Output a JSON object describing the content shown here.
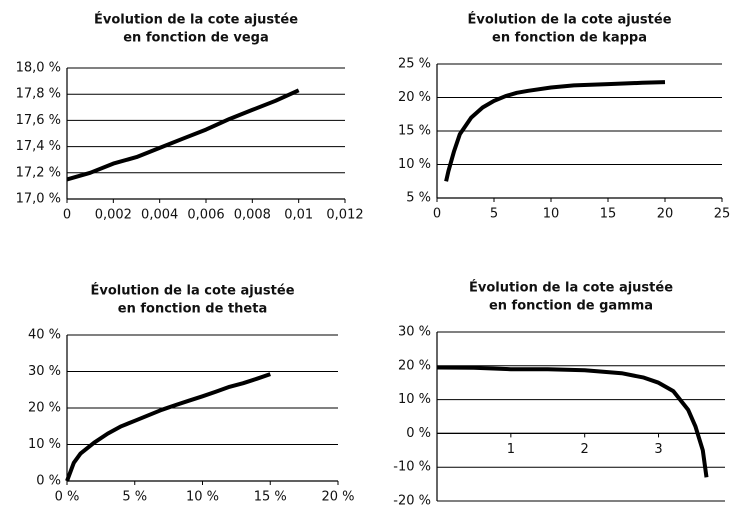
{
  "chart_data": [
    {
      "type": "line",
      "title": [
        "Évolution de la cote ajustée",
        "en fonction de vega"
      ],
      "x": [
        0,
        0.001,
        0.002,
        0.003,
        0.004,
        0.005,
        0.006,
        0.007,
        0.008,
        0.009,
        0.01
      ],
      "values": [
        17.15,
        17.2,
        17.27,
        17.32,
        17.39,
        17.46,
        17.53,
        17.61,
        17.68,
        17.75,
        17.83
      ],
      "color": "#000000",
      "grid": true,
      "xlim": [
        0,
        0.012
      ],
      "xticks": [
        0,
        {
          "value": 0.002,
          "label": "0,002"
        },
        {
          "value": 0.004,
          "label": "0,004"
        },
        {
          "value": 0.006,
          "label": "0,006"
        },
        {
          "value": 0.008,
          "label": "0,008"
        },
        {
          "value": 0.01,
          "label": "0,01"
        },
        {
          "value": 0.012,
          "label": "0,012"
        }
      ],
      "ylim": [
        17.0,
        18.0
      ],
      "yticks": [
        {
          "value": 17.0,
          "label": "17,0 %"
        },
        {
          "value": 17.2,
          "label": "17,2 %"
        },
        {
          "value": 17.4,
          "label": "17,4 %"
        },
        {
          "value": 17.6,
          "label": "17,6 %"
        },
        {
          "value": 17.8,
          "label": "17,8 %"
        },
        {
          "value": 18.0,
          "label": "18,0 %"
        }
      ]
    },
    {
      "type": "line",
      "title": [
        "Évolution de la cote ajustée",
        "en fonction de kappa"
      ],
      "x": [
        0.8,
        1,
        1.5,
        2,
        3,
        4,
        5,
        6,
        7,
        8,
        10,
        12,
        15,
        18,
        20
      ],
      "values": [
        7.5,
        9,
        12,
        14.5,
        17,
        18.5,
        19.5,
        20.2,
        20.7,
        21,
        21.5,
        21.8,
        22,
        22.2,
        22.3
      ],
      "color": "#000000",
      "grid": true,
      "xlim": [
        0,
        25
      ],
      "xticks": [
        0,
        5,
        10,
        15,
        20,
        25
      ],
      "ylim": [
        5,
        25
      ],
      "yticks": [
        {
          "value": 5,
          "label": "5 %"
        },
        {
          "value": 10,
          "label": "10 %"
        },
        {
          "value": 15,
          "label": "15 %"
        },
        {
          "value": 20,
          "label": "20 %"
        },
        {
          "value": 25,
          "label": "25 %"
        }
      ]
    },
    {
      "type": "line",
      "title": [
        "Évolution de la cote ajustée",
        "en fonction de theta"
      ],
      "x": [
        0,
        0.5,
        1,
        2,
        3,
        4,
        5,
        6,
        7,
        8,
        9,
        10,
        11,
        12,
        13,
        14,
        15
      ],
      "values": [
        0,
        5,
        7.5,
        10.5,
        13,
        15,
        16.5,
        18,
        19.5,
        20.8,
        22,
        23.2,
        24.5,
        25.8,
        26.8,
        28,
        29.3
      ],
      "color": "#000000",
      "grid": true,
      "xlim": [
        0,
        20
      ],
      "xticks": [
        {
          "value": 0,
          "label": "0 %"
        },
        {
          "value": 5,
          "label": "5 %"
        },
        {
          "value": 10,
          "label": "10 %"
        },
        {
          "value": 15,
          "label": "15 %"
        },
        {
          "value": 20,
          "label": "20 %"
        }
      ],
      "ylim": [
        0,
        40
      ],
      "yticks": [
        {
          "value": 0,
          "label": "0 %"
        },
        {
          "value": 10,
          "label": "10 %"
        },
        {
          "value": 20,
          "label": "20 %"
        },
        {
          "value": 30,
          "label": "30 %"
        },
        {
          "value": 40,
          "label": "40 %"
        }
      ]
    },
    {
      "type": "line",
      "title": [
        "Évolution de la cote ajustée",
        "en fonction de gamma"
      ],
      "x": [
        0,
        0.5,
        1,
        1.5,
        2,
        2.5,
        2.8,
        3,
        3.2,
        3.4,
        3.5,
        3.6,
        3.65
      ],
      "values": [
        19.5,
        19.4,
        19,
        19,
        18.7,
        17.8,
        16.5,
        15,
        12.5,
        7,
        2,
        -5,
        -13
      ],
      "color": "#000000",
      "grid": true,
      "xlim": [
        0,
        3.9
      ],
      "xticks": [
        1,
        2,
        3
      ],
      "ylim": [
        -20,
        30
      ],
      "yticks": [
        {
          "value": -20,
          "label": "-20 %"
        },
        {
          "value": -10,
          "label": "-10 %"
        },
        {
          "value": 0,
          "label": "0 %"
        },
        {
          "value": 10,
          "label": "10 %"
        },
        {
          "value": 20,
          "label": "20 %"
        },
        {
          "value": 30,
          "label": "30 %"
        }
      ]
    }
  ]
}
